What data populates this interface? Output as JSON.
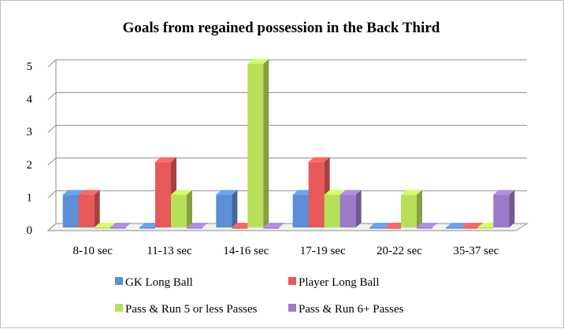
{
  "chart_data": {
    "type": "bar",
    "title": "Goals from regained possession in the Back Third",
    "xlabel": "",
    "ylabel": "",
    "categories": [
      "8-10 sec",
      "11-13 sec",
      "14-16 sec",
      "17-19 sec",
      "20-22 sec",
      "35-37 sec"
    ],
    "ylim": [
      0,
      5
    ],
    "yticks": [
      "0",
      "1",
      "2",
      "3",
      "4",
      "5"
    ],
    "grid": true,
    "legend_position": "bottom",
    "series": [
      {
        "name": "GK Long Ball",
        "values": [
          1,
          0,
          1,
          1,
          0,
          0
        ],
        "color": "#5b8fd6"
      },
      {
        "name": "Player Long Ball",
        "values": [
          1,
          2,
          0,
          2,
          0,
          0
        ],
        "color": "#e8595a"
      },
      {
        "name": "Pass & Run 5 or less Passes",
        "values": [
          0,
          1,
          5,
          1,
          1,
          0
        ],
        "color": "#b6e05a"
      },
      {
        "name": "Pass & Run 6+ Passes",
        "values": [
          0,
          0,
          0,
          1,
          0,
          1
        ],
        "color": "#9a7cc8"
      }
    ]
  }
}
